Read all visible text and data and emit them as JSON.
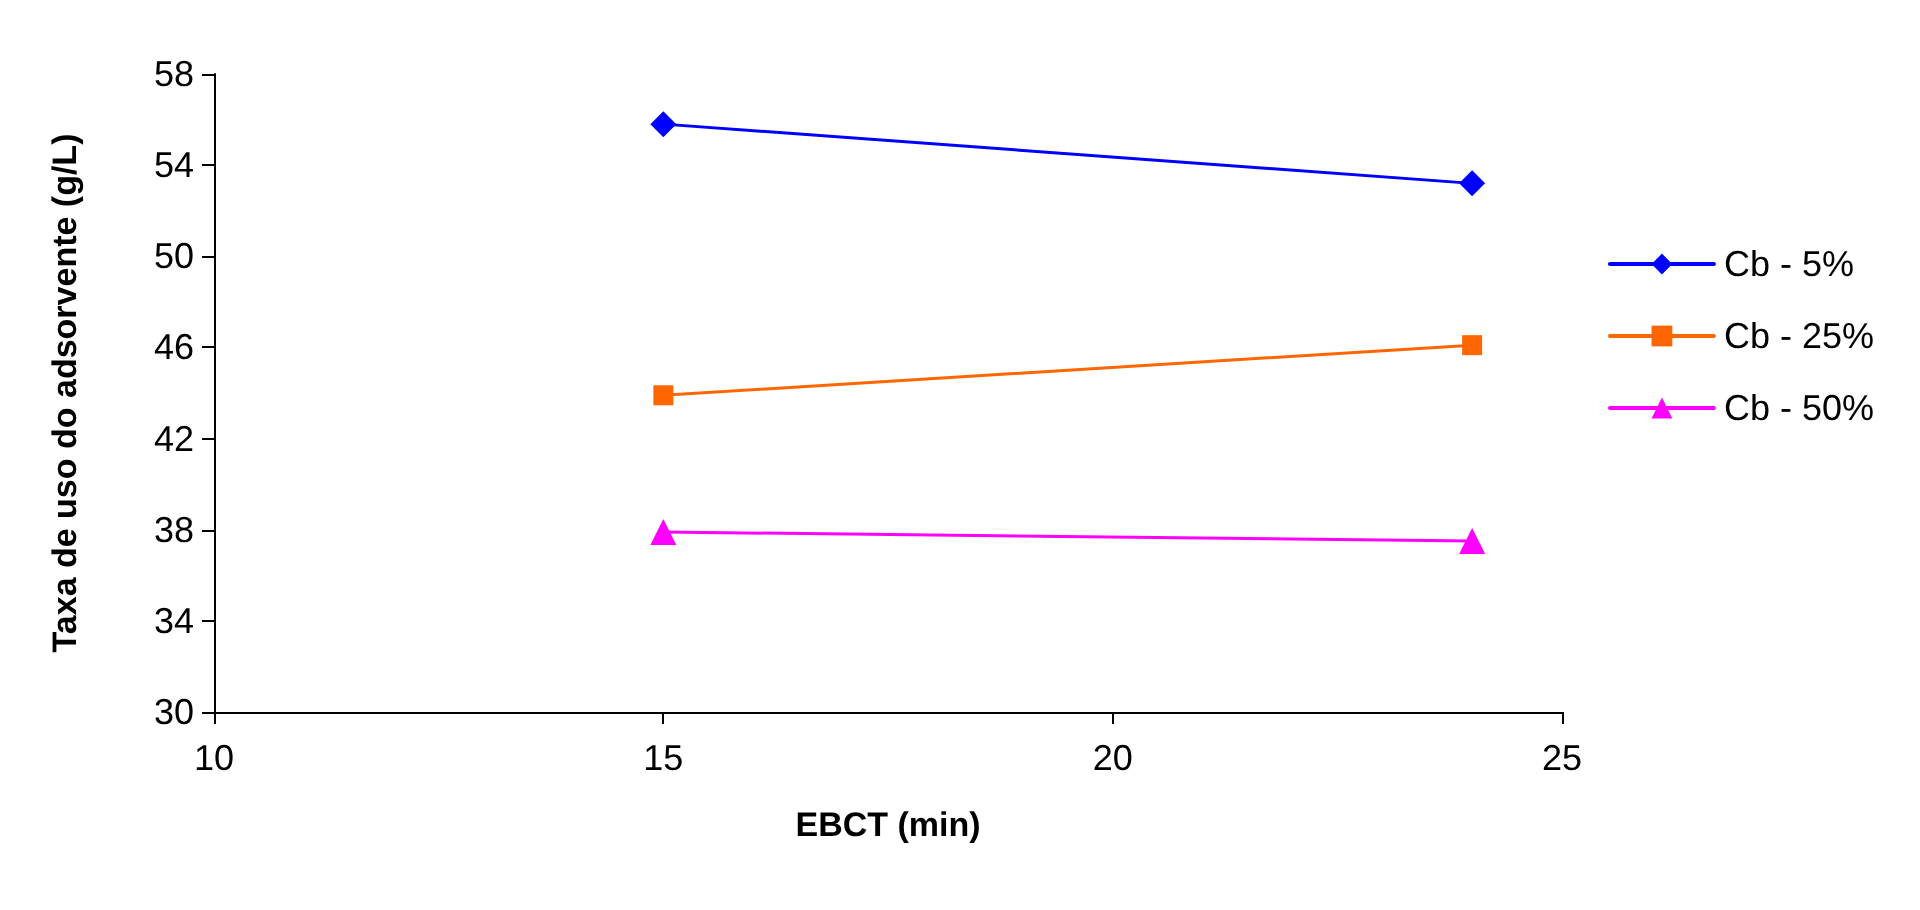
{
  "chart_data": {
    "type": "line",
    "xlabel": "EBCT (min)",
    "ylabel": "Taxa de uso do adsorvente (g/L)",
    "x": [
      15,
      24
    ],
    "series": [
      {
        "name": "Cb - 5%",
        "color": "#0000ff",
        "marker": "diamond",
        "values": [
          55.8,
          53.2
        ]
      },
      {
        "name": "Cb - 25%",
        "color": "#ff6600",
        "marker": "square",
        "values": [
          43.9,
          46.1
        ]
      },
      {
        "name": "Cb - 50%",
        "color": "#ff00ff",
        "marker": "triangle",
        "values": [
          37.9,
          37.5
        ]
      }
    ],
    "xlim": [
      10,
      25
    ],
    "xticks": [
      10,
      15,
      20,
      25
    ],
    "ylim": [
      30,
      58
    ],
    "yticks": [
      30,
      34,
      38,
      42,
      46,
      50,
      54,
      58
    ],
    "grid": false,
    "legend": "right",
    "line_style": "solid"
  }
}
